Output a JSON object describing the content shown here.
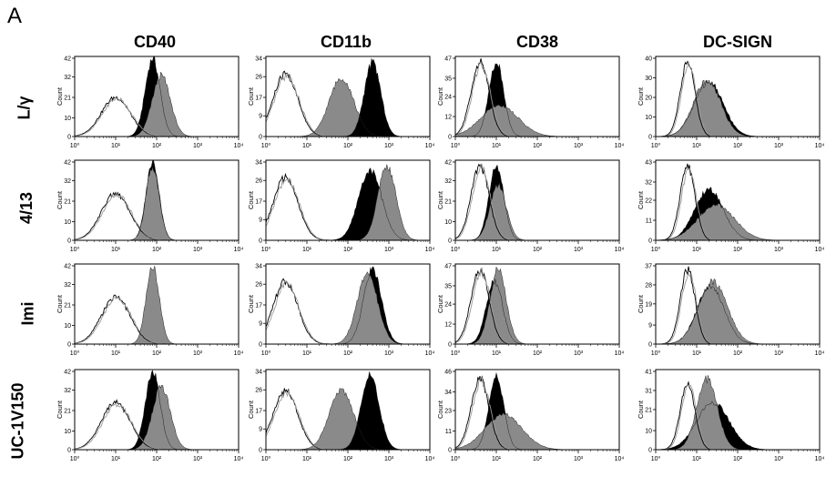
{
  "figure": {
    "panel_letter": "A",
    "columns": [
      "CD40",
      "CD11b",
      "CD38",
      "DC-SIGN"
    ],
    "rows": [
      "L/γ",
      "4/13",
      "Imi",
      "UC-1V150"
    ]
  },
  "chart_data": {
    "type": "histogram-grid",
    "x_scale": "log",
    "xlim": [
      1,
      10000
    ],
    "x_tick_labels": [
      "10⁰",
      "10¹",
      "10²",
      "10³",
      "10⁴"
    ],
    "ylabel": "Count",
    "series_styles": {
      "isotype_1": "open-thin-black",
      "isotype_2": "open-thin-grey",
      "marker_black": "filled-black",
      "marker_grey": "filled-grey"
    },
    "panels": [
      {
        "row": "L/γ",
        "column": "CD40",
        "ymax": 42,
        "y_ticks": [
          0,
          10,
          21,
          32,
          42
        ],
        "peaks": [
          {
            "series": "isotype",
            "center": 10,
            "height": 0.5,
            "width": 0.35
          },
          {
            "series": "marker_black",
            "center": 80,
            "height": 1.0,
            "width": 0.18
          },
          {
            "series": "marker_grey",
            "center": 130,
            "height": 0.78,
            "width": 0.22
          }
        ]
      },
      {
        "row": "L/γ",
        "column": "CD11b",
        "ymax": 34,
        "y_ticks": [
          0,
          9,
          17,
          26,
          34
        ],
        "peaks": [
          {
            "series": "isotype",
            "center": 3,
            "height": 0.8,
            "width": 0.3
          },
          {
            "series": "marker_grey",
            "center": 70,
            "height": 0.75,
            "width": 0.3
          },
          {
            "series": "marker_black",
            "center": 400,
            "height": 0.95,
            "width": 0.2
          }
        ]
      },
      {
        "row": "L/γ",
        "column": "CD38",
        "ymax": 47,
        "y_ticks": [
          0,
          12,
          24,
          35,
          47
        ],
        "peaks": [
          {
            "series": "isotype",
            "center": 4,
            "height": 0.95,
            "width": 0.22
          },
          {
            "series": "marker_black",
            "center": 10,
            "height": 0.95,
            "width": 0.18
          },
          {
            "series": "marker_grey",
            "center": 12,
            "height": 0.4,
            "width": 0.45
          }
        ]
      },
      {
        "row": "L/γ",
        "column": "DC-SIGN",
        "ymax": 40,
        "y_ticks": [
          0,
          10,
          20,
          30,
          40
        ],
        "peaks": [
          {
            "series": "isotype",
            "center": 6,
            "height": 0.95,
            "width": 0.18
          },
          {
            "series": "marker_black",
            "center": 20,
            "height": 0.7,
            "width": 0.35
          },
          {
            "series": "marker_grey",
            "center": 18,
            "height": 0.72,
            "width": 0.33
          }
        ]
      },
      {
        "row": "4/13",
        "column": "CD40",
        "ymax": 42,
        "y_ticks": [
          0,
          10,
          21,
          32,
          42
        ],
        "peaks": [
          {
            "series": "isotype",
            "center": 10,
            "height": 0.6,
            "width": 0.35
          },
          {
            "series": "marker_black",
            "center": 80,
            "height": 1.0,
            "width": 0.16
          },
          {
            "series": "marker_grey",
            "center": 80,
            "height": 0.95,
            "width": 0.16
          }
        ]
      },
      {
        "row": "4/13",
        "column": "CD11b",
        "ymax": 34,
        "y_ticks": [
          0,
          9,
          17,
          26,
          34
        ],
        "peaks": [
          {
            "series": "isotype",
            "center": 3,
            "height": 0.8,
            "width": 0.3
          },
          {
            "series": "marker_black",
            "center": 350,
            "height": 0.9,
            "width": 0.28
          },
          {
            "series": "marker_grey",
            "center": 900,
            "height": 0.95,
            "width": 0.22
          }
        ]
      },
      {
        "row": "4/13",
        "column": "CD38",
        "ymax": 42,
        "y_ticks": [
          0,
          10,
          21,
          32,
          42
        ],
        "peaks": [
          {
            "series": "isotype",
            "center": 4,
            "height": 0.95,
            "width": 0.22
          },
          {
            "series": "marker_black",
            "center": 10,
            "height": 0.95,
            "width": 0.18
          },
          {
            "series": "marker_grey",
            "center": 11,
            "height": 0.7,
            "width": 0.2
          }
        ]
      },
      {
        "row": "4/13",
        "column": "DC-SIGN",
        "ymax": 43,
        "y_ticks": [
          0,
          11,
          22,
          32,
          43
        ],
        "peaks": [
          {
            "series": "isotype",
            "center": 6,
            "height": 0.95,
            "width": 0.18
          },
          {
            "series": "marker_black",
            "center": 20,
            "height": 0.65,
            "width": 0.35
          },
          {
            "series": "marker_grey",
            "center": 30,
            "height": 0.45,
            "width": 0.45
          }
        ]
      },
      {
        "row": "Imi",
        "column": "CD40",
        "ymax": 42,
        "y_ticks": [
          0,
          10,
          21,
          32,
          42
        ],
        "peaks": [
          {
            "series": "isotype",
            "center": 10,
            "height": 0.6,
            "width": 0.35
          },
          {
            "series": "marker_grey",
            "center": 80,
            "height": 1.0,
            "width": 0.16
          }
        ]
      },
      {
        "row": "Imi",
        "column": "CD11b",
        "ymax": 34,
        "y_ticks": [
          0,
          9,
          17,
          26,
          34
        ],
        "peaks": [
          {
            "series": "isotype",
            "center": 3,
            "height": 0.8,
            "width": 0.3
          },
          {
            "series": "marker_black",
            "center": 400,
            "height": 0.95,
            "width": 0.22
          },
          {
            "series": "marker_grey",
            "center": 300,
            "height": 0.9,
            "width": 0.25
          }
        ]
      },
      {
        "row": "Imi",
        "column": "CD38",
        "ymax": 47,
        "y_ticks": [
          0,
          12,
          24,
          35,
          47
        ],
        "peaks": [
          {
            "series": "isotype",
            "center": 4,
            "height": 0.95,
            "width": 0.22
          },
          {
            "series": "marker_black",
            "center": 9,
            "height": 0.8,
            "width": 0.2
          },
          {
            "series": "marker_grey",
            "center": 11,
            "height": 0.95,
            "width": 0.2
          }
        ]
      },
      {
        "row": "Imi",
        "column": "DC-SIGN",
        "ymax": 37,
        "y_ticks": [
          0,
          9,
          19,
          28,
          37
        ],
        "peaks": [
          {
            "series": "isotype",
            "center": 6,
            "height": 0.95,
            "width": 0.18
          },
          {
            "series": "marker_black",
            "center": 22,
            "height": 0.75,
            "width": 0.33
          },
          {
            "series": "marker_grey",
            "center": 25,
            "height": 0.8,
            "width": 0.35
          }
        ]
      },
      {
        "row": "UC-1V150",
        "column": "CD40",
        "ymax": 42,
        "y_ticks": [
          0,
          10,
          21,
          32,
          42
        ],
        "peaks": [
          {
            "series": "isotype",
            "center": 10,
            "height": 0.6,
            "width": 0.35
          },
          {
            "series": "marker_black",
            "center": 80,
            "height": 1.0,
            "width": 0.18
          },
          {
            "series": "marker_grey",
            "center": 130,
            "height": 0.8,
            "width": 0.22
          }
        ]
      },
      {
        "row": "UC-1V150",
        "column": "CD11b",
        "ymax": 34,
        "y_ticks": [
          0,
          9,
          17,
          26,
          34
        ],
        "peaks": [
          {
            "series": "isotype",
            "center": 3,
            "height": 0.75,
            "width": 0.3
          },
          {
            "series": "marker_grey",
            "center": 70,
            "height": 0.75,
            "width": 0.3
          },
          {
            "series": "marker_black",
            "center": 350,
            "height": 0.95,
            "width": 0.22
          }
        ]
      },
      {
        "row": "UC-1V150",
        "column": "CD38",
        "ymax": 46,
        "y_ticks": [
          0,
          11,
          23,
          34,
          46
        ],
        "peaks": [
          {
            "series": "isotype",
            "center": 4,
            "height": 0.9,
            "width": 0.22
          },
          {
            "series": "marker_black",
            "center": 10,
            "height": 0.95,
            "width": 0.18
          },
          {
            "series": "marker_grey",
            "center": 15,
            "height": 0.45,
            "width": 0.45
          }
        ]
      },
      {
        "row": "UC-1V150",
        "column": "DC-SIGN",
        "ymax": 41,
        "y_ticks": [
          0,
          10,
          21,
          31,
          41
        ],
        "peaks": [
          {
            "series": "isotype",
            "center": 6,
            "height": 0.85,
            "width": 0.18
          },
          {
            "series": "marker_black",
            "center": 25,
            "height": 0.6,
            "width": 0.4
          },
          {
            "series": "marker_grey",
            "center": 18,
            "height": 0.9,
            "width": 0.25
          }
        ]
      }
    ]
  }
}
